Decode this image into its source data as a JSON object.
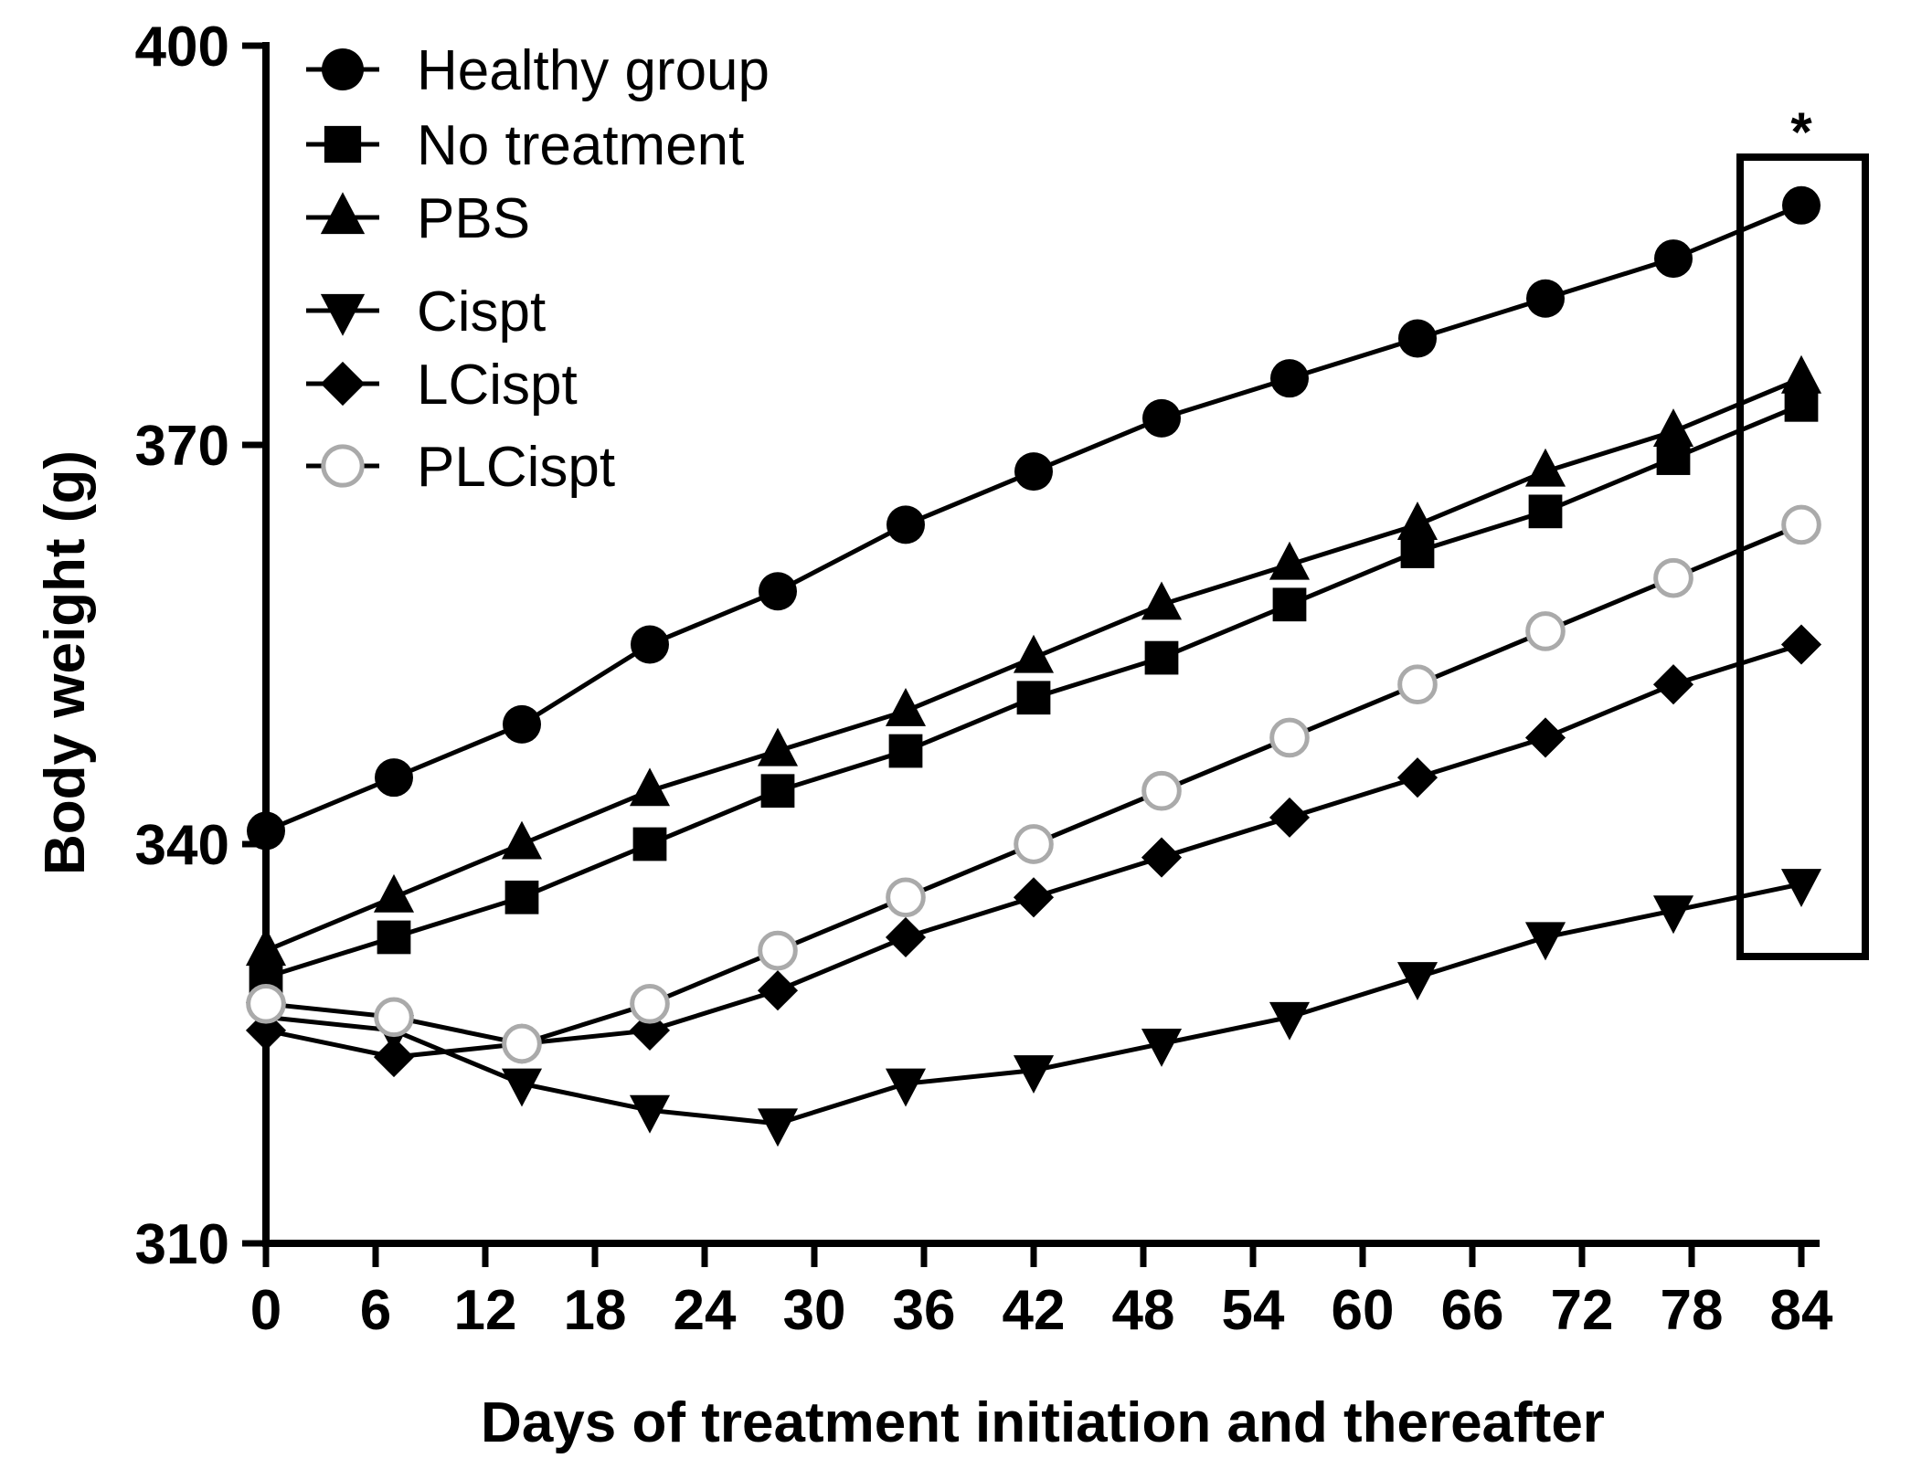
{
  "chart_data": {
    "type": "line",
    "title": "",
    "xlabel": "Days of treatment initiation and thereafter",
    "ylabel": "Body weight (g)",
    "xlim": [
      0,
      84
    ],
    "ylim": [
      310,
      400
    ],
    "x_ticks": [
      "0",
      "6",
      "12",
      "18",
      "24",
      "30",
      "36",
      "42",
      "48",
      "54",
      "60",
      "66",
      "72",
      "78",
      "84"
    ],
    "y_ticks": [
      "310",
      "340",
      "370",
      "400"
    ],
    "x": [
      0,
      7,
      14,
      21,
      28,
      35,
      42,
      49,
      56,
      63,
      70,
      77,
      84
    ],
    "series": [
      {
        "name": "Healthy group",
        "marker": "circle",
        "color": "#000000",
        "values": [
          341,
          345,
          349,
          355,
          359,
          364,
          368,
          372,
          375,
          378,
          381,
          384,
          388
        ]
      },
      {
        "name": "No treatment",
        "marker": "square",
        "color": "#000000",
        "values": [
          330,
          333,
          336,
          340,
          344,
          347,
          351,
          354,
          358,
          362,
          365,
          369,
          373
        ]
      },
      {
        "name": "PBS",
        "marker": "triangle-up",
        "color": "#000000",
        "values": [
          332,
          336,
          340,
          344,
          347,
          350,
          354,
          358,
          361,
          364,
          368,
          371,
          375
        ]
      },
      {
        "name": "Cispt",
        "marker": "triangle-down",
        "color": "#000000",
        "values": [
          327,
          326,
          322,
          320,
          319,
          322,
          323,
          325,
          327,
          330,
          333,
          335,
          337
        ]
      },
      {
        "name": "LCispt",
        "marker": "diamond",
        "color": "#000000",
        "values": [
          326,
          324,
          325,
          326,
          329,
          333,
          336,
          339,
          342,
          345,
          348,
          352,
          355
        ]
      },
      {
        "name": "PLCispt",
        "marker": "open-circle",
        "color": "#aaaaaa",
        "values": [
          328,
          327,
          325,
          328,
          332,
          336,
          340,
          344,
          348,
          352,
          356,
          360,
          364
        ]
      }
    ],
    "legend_position": "top-left",
    "annotation": {
      "text": "*",
      "target_x": 84
    }
  }
}
